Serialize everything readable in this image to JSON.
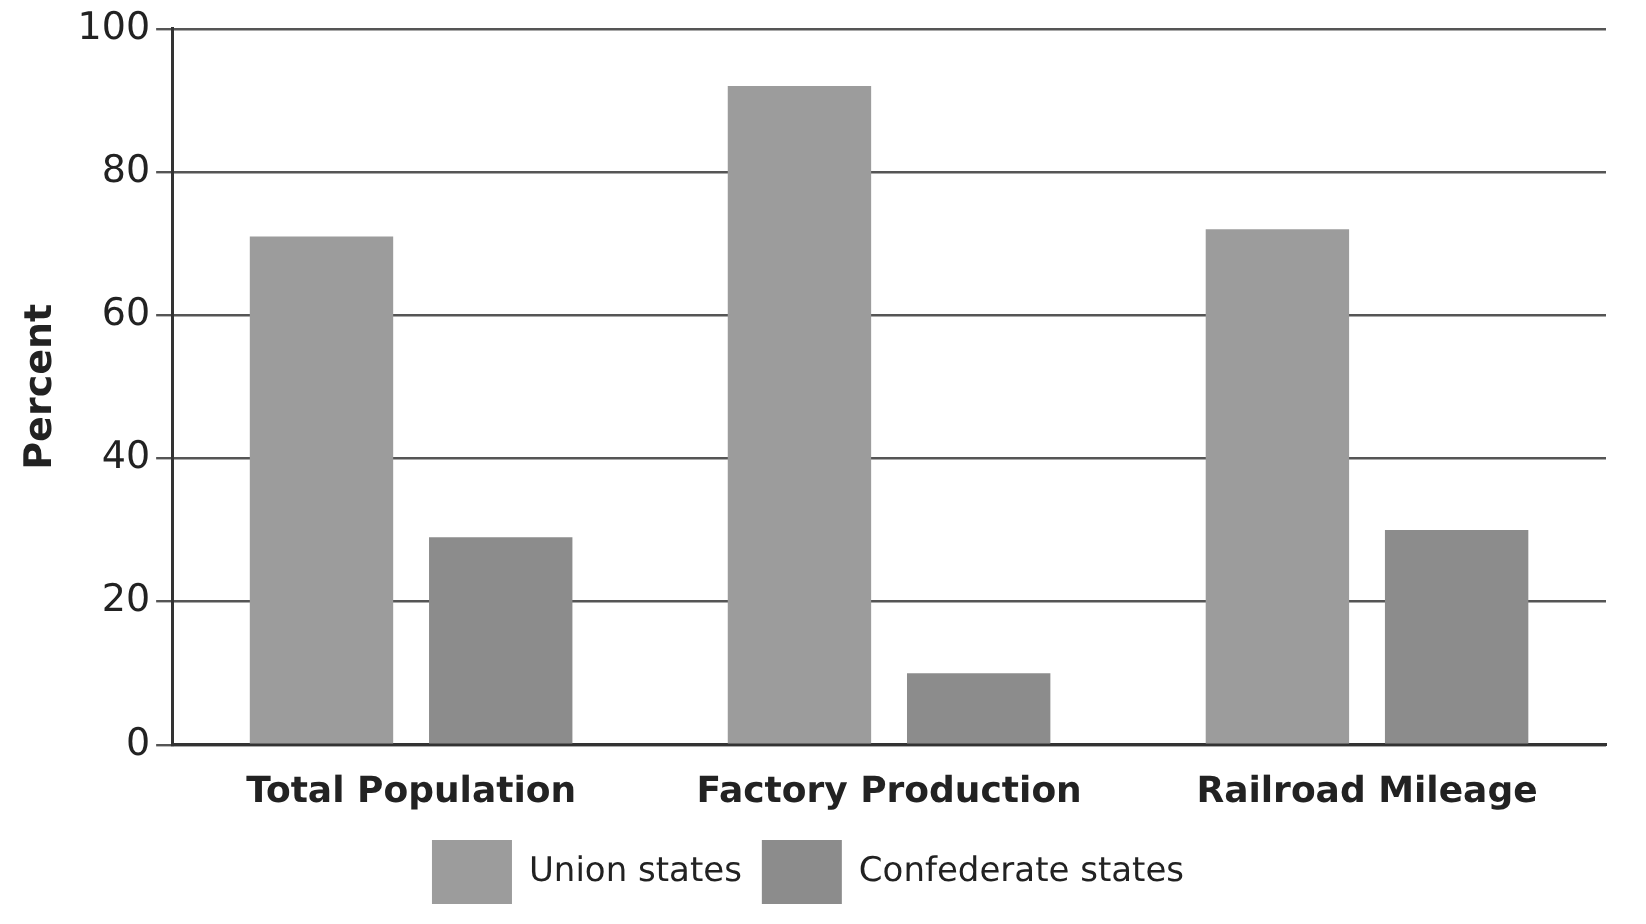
{
  "chart_data": {
    "type": "bar",
    "ylabel": "Percent",
    "categories": [
      "Total Population",
      "Factory Production",
      "Railroad Mileage"
    ],
    "series": [
      {
        "name": "Union states",
        "color": "#9c9c9c",
        "values": [
          71,
          92,
          72
        ]
      },
      {
        "name": "Confederate states",
        "color": "#8c8c8c",
        "values": [
          29,
          10,
          30
        ]
      }
    ],
    "ylim": [
      0,
      100
    ],
    "yticks": [
      0,
      20,
      40,
      60,
      80,
      100
    ],
    "grid": "y",
    "legend": "bottom"
  }
}
